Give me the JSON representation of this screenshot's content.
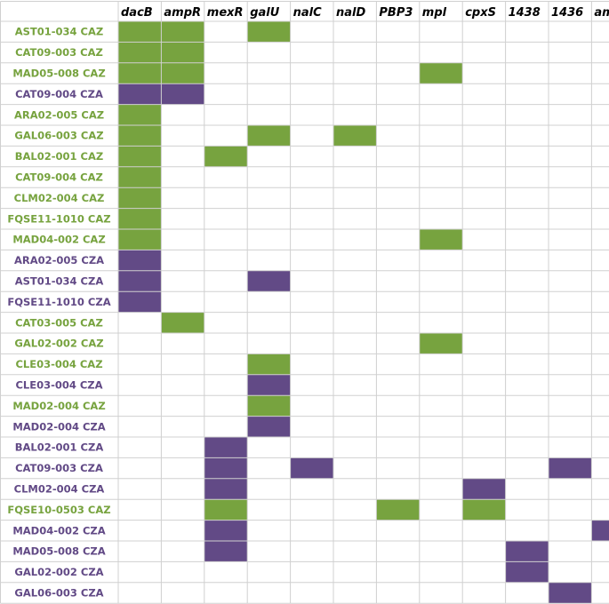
{
  "chart_data": {
    "type": "heatmap",
    "title": "",
    "xlabel": "",
    "ylabel": "",
    "genes": [
      "dacB",
      "ampR",
      "mexR",
      "galU",
      "nalC",
      "nalD",
      "PBP3",
      "mpl",
      "cpxS",
      "1438",
      "1436",
      "ampD"
    ],
    "samples": [
      {
        "label": "AST01-034 CAZ",
        "group": "CAZ",
        "mutated": [
          "dacB",
          "ampR",
          "galU"
        ]
      },
      {
        "label": "CAT09-003 CAZ",
        "group": "CAZ",
        "mutated": [
          "dacB",
          "ampR"
        ]
      },
      {
        "label": "MAD05-008 CAZ",
        "group": "CAZ",
        "mutated": [
          "dacB",
          "ampR",
          "mpl"
        ]
      },
      {
        "label": "CAT09-004 CZA",
        "group": "CZA",
        "mutated": [
          "dacB",
          "ampR"
        ]
      },
      {
        "label": "ARA02-005 CAZ",
        "group": "CAZ",
        "mutated": [
          "dacB"
        ]
      },
      {
        "label": "GAL06-003 CAZ",
        "group": "CAZ",
        "mutated": [
          "dacB",
          "galU",
          "nalD"
        ]
      },
      {
        "label": "BAL02-001 CAZ",
        "group": "CAZ",
        "mutated": [
          "dacB",
          "mexR"
        ]
      },
      {
        "label": "CAT09-004 CAZ",
        "group": "CAZ",
        "mutated": [
          "dacB"
        ]
      },
      {
        "label": "CLM02-004 CAZ",
        "group": "CAZ",
        "mutated": [
          "dacB"
        ]
      },
      {
        "label": "FQSE11-1010 CAZ",
        "group": "CAZ",
        "mutated": [
          "dacB"
        ]
      },
      {
        "label": "MAD04-002 CAZ",
        "group": "CAZ",
        "mutated": [
          "dacB",
          "mpl"
        ]
      },
      {
        "label": "ARA02-005 CZA",
        "group": "CZA",
        "mutated": [
          "dacB"
        ]
      },
      {
        "label": "AST01-034 CZA",
        "group": "CZA",
        "mutated": [
          "dacB",
          "galU"
        ]
      },
      {
        "label": "FQSE11-1010 CZA",
        "group": "CZA",
        "mutated": [
          "dacB"
        ]
      },
      {
        "label": "CAT03-005 CAZ",
        "group": "CAZ",
        "mutated": [
          "ampR"
        ]
      },
      {
        "label": "GAL02-002 CAZ",
        "group": "CAZ",
        "mutated": [
          "mpl"
        ]
      },
      {
        "label": "CLE03-004 CAZ",
        "group": "CAZ",
        "mutated": [
          "galU"
        ]
      },
      {
        "label": "CLE03-004 CZA",
        "group": "CZA",
        "mutated": [
          "galU"
        ]
      },
      {
        "label": "MAD02-004 CAZ",
        "group": "CAZ",
        "mutated": [
          "galU"
        ]
      },
      {
        "label": "MAD02-004 CZA",
        "group": "CZA",
        "mutated": [
          "galU"
        ]
      },
      {
        "label": "BAL02-001 CZA",
        "group": "CZA",
        "mutated": [
          "mexR"
        ]
      },
      {
        "label": "CAT09-003 CZA",
        "group": "CZA",
        "mutated": [
          "mexR",
          "nalC",
          "1436"
        ]
      },
      {
        "label": "CLM02-004 CZA",
        "group": "CZA",
        "mutated": [
          "mexR",
          "cpxS"
        ]
      },
      {
        "label": "FQSE10-0503 CAZ",
        "group": "CAZ",
        "mutated": [
          "mexR",
          "PBP3",
          "cpxS"
        ]
      },
      {
        "label": "MAD04-002 CZA",
        "group": "CZA",
        "mutated": [
          "mexR",
          "ampD"
        ]
      },
      {
        "label": "MAD05-008 CZA",
        "group": "CZA",
        "mutated": [
          "mexR",
          "1438"
        ]
      },
      {
        "label": "GAL02-002 CZA",
        "group": "CZA",
        "mutated": [
          "1438"
        ]
      },
      {
        "label": "GAL06-003 CZA",
        "group": "CZA",
        "mutated": [
          "1436"
        ]
      }
    ],
    "colors": {
      "CAZ": "#77a33f",
      "CZA": "#624a86",
      "empty": "#ffffff",
      "grid": "#d0d0d0"
    },
    "grid": true,
    "legend": "none"
  }
}
